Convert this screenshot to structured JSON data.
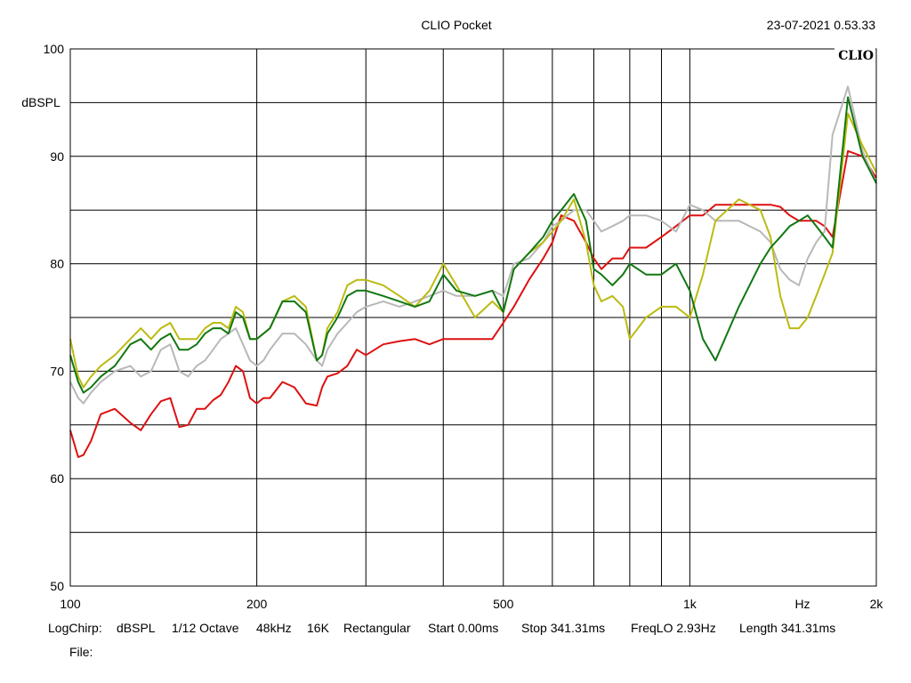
{
  "header": {
    "title": "CLIO Pocket",
    "timestamp": "23-07-2021 0.53.33"
  },
  "brand": "CLIO",
  "footer": {
    "settings": [
      "LogChirp:",
      "dBSPL",
      "1/12 Octave",
      "48kHz",
      "16K",
      "Rectangular",
      "Start 0.00ms",
      "Stop 341.31ms",
      "FreqLO 2.93Hz",
      "Length 341.31ms"
    ],
    "file_label": "File:"
  },
  "chart_data": {
    "type": "line",
    "title": "CLIO Pocket",
    "xscale": "log",
    "xlim": [
      100,
      2000
    ],
    "ylim": [
      50,
      100
    ],
    "ylabel": "dBSPL",
    "xunit": "Hz",
    "grid": true,
    "x_ticks": [
      {
        "value": 100,
        "label": "100"
      },
      {
        "value": 200,
        "label": "200"
      },
      {
        "value": 500,
        "label": "500"
      },
      {
        "value": 1000,
        "label": "1k"
      },
      {
        "value": 2000,
        "label": "2k"
      }
    ],
    "x_gridlines": [
      200,
      300,
      400,
      500,
      600,
      700,
      800,
      900,
      1000
    ],
    "y_ticks": [
      50,
      60,
      70,
      80,
      90,
      100
    ],
    "y_gridlines": [
      55,
      60,
      65,
      70,
      75,
      80,
      85,
      90,
      95
    ],
    "series": [
      {
        "color": "#dd1111",
        "x": [
          100,
          103,
          105,
          108,
          112,
          118,
          125,
          130,
          135,
          140,
          145,
          150,
          155,
          160,
          165,
          170,
          175,
          180,
          185,
          190,
          195,
          200,
          205,
          210,
          220,
          230,
          240,
          250,
          255,
          260,
          270,
          280,
          290,
          300,
          320,
          340,
          360,
          380,
          400,
          420,
          450,
          480,
          500,
          520,
          550,
          580,
          600,
          620,
          650,
          680,
          700,
          720,
          750,
          780,
          800,
          850,
          900,
          950,
          1000,
          1050,
          1100,
          1200,
          1300,
          1350,
          1400,
          1450,
          1500,
          1550,
          1600,
          1650,
          1700,
          1800,
          1900,
          2000
        ],
        "y": [
          64.5,
          62,
          62.2,
          63.5,
          66,
          66.5,
          65.2,
          64.5,
          66,
          67.2,
          67.5,
          64.8,
          65,
          66.5,
          66.5,
          67.3,
          67.8,
          69,
          70.5,
          70,
          67.5,
          67,
          67.5,
          67.5,
          69,
          68.5,
          67,
          66.8,
          68.5,
          69.5,
          69.8,
          70.5,
          72,
          71.5,
          72.5,
          72.8,
          73,
          72.5,
          73,
          73,
          73,
          73,
          74.5,
          76,
          78.5,
          80.5,
          82,
          84.5,
          84,
          82,
          80.5,
          79.5,
          80.5,
          80.5,
          81.5,
          81.5,
          82.5,
          83.5,
          84.5,
          84.5,
          85.5,
          85.5,
          85.5,
          85.5,
          85.3,
          84.5,
          84,
          84,
          84,
          83.5,
          82.5,
          90.5,
          90,
          88
        ]
      },
      {
        "color": "#b8b8b8",
        "x": [
          100,
          103,
          105,
          108,
          112,
          118,
          125,
          130,
          135,
          140,
          145,
          150,
          155,
          160,
          165,
          170,
          175,
          180,
          185,
          190,
          195,
          200,
          205,
          210,
          220,
          230,
          240,
          250,
          255,
          260,
          270,
          280,
          290,
          300,
          320,
          340,
          360,
          380,
          400,
          420,
          450,
          480,
          500,
          520,
          550,
          580,
          600,
          620,
          650,
          680,
          700,
          720,
          750,
          780,
          800,
          850,
          900,
          950,
          1000,
          1050,
          1100,
          1200,
          1300,
          1350,
          1400,
          1450,
          1500,
          1550,
          1600,
          1650,
          1700,
          1800,
          1900,
          2000
        ],
        "y": [
          69,
          67.5,
          67,
          68,
          69,
          70,
          70.5,
          69.5,
          70,
          72,
          72.5,
          70,
          69.5,
          70.5,
          71,
          72,
          73,
          73.5,
          74,
          72.5,
          71,
          70.5,
          71,
          72,
          73.5,
          73.5,
          72.5,
          71,
          70.5,
          72,
          73.5,
          74.5,
          75.5,
          76,
          76.5,
          76,
          76.5,
          77,
          77.5,
          77,
          77,
          77.5,
          77,
          80,
          80.5,
          82,
          83.5,
          84,
          85,
          85,
          84,
          83,
          83.5,
          84,
          84.5,
          84.5,
          84,
          83,
          85.5,
          85,
          84,
          84,
          83,
          82,
          79.5,
          78.5,
          78,
          80.5,
          82,
          83,
          92,
          96.5,
          90.5,
          87.5
        ]
      },
      {
        "color": "#bbbb11",
        "x": [
          100,
          103,
          105,
          108,
          112,
          118,
          125,
          130,
          135,
          140,
          145,
          150,
          155,
          160,
          165,
          170,
          175,
          180,
          185,
          190,
          195,
          200,
          205,
          210,
          220,
          230,
          240,
          250,
          255,
          260,
          270,
          280,
          290,
          300,
          320,
          340,
          360,
          380,
          400,
          420,
          450,
          480,
          500,
          520,
          550,
          580,
          600,
          620,
          650,
          680,
          700,
          720,
          750,
          780,
          800,
          850,
          900,
          950,
          1000,
          1050,
          1100,
          1200,
          1300,
          1350,
          1400,
          1450,
          1500,
          1550,
          1600,
          1650,
          1700,
          1800,
          1900,
          2000
        ],
        "y": [
          73,
          69.5,
          68.5,
          69.5,
          70.5,
          71.5,
          73,
          74,
          73,
          74,
          74.5,
          73,
          73,
          73,
          74,
          74.5,
          74.5,
          74,
          76,
          75.5,
          73,
          73,
          73.5,
          74,
          76.5,
          77,
          76,
          71,
          71.5,
          74,
          75.5,
          78,
          78.5,
          78.5,
          78,
          77,
          76,
          77.5,
          80,
          78,
          75,
          76.5,
          75.5,
          79.5,
          81,
          82,
          83,
          84,
          86,
          82,
          78,
          76.5,
          77,
          76,
          73,
          75,
          76,
          76,
          75,
          79,
          84,
          86,
          85,
          82.5,
          77,
          74,
          74,
          75,
          77,
          79,
          81,
          94,
          91,
          88.5
        ]
      },
      {
        "color": "#117711",
        "x": [
          100,
          103,
          105,
          108,
          112,
          118,
          125,
          130,
          135,
          140,
          145,
          150,
          155,
          160,
          165,
          170,
          175,
          180,
          185,
          190,
          195,
          200,
          205,
          210,
          220,
          230,
          240,
          250,
          255,
          260,
          270,
          280,
          290,
          300,
          320,
          340,
          360,
          380,
          400,
          420,
          450,
          480,
          500,
          520,
          550,
          580,
          600,
          620,
          650,
          680,
          700,
          720,
          750,
          780,
          800,
          850,
          900,
          950,
          1000,
          1050,
          1100,
          1200,
          1300,
          1350,
          1400,
          1450,
          1500,
          1550,
          1600,
          1650,
          1700,
          1800,
          1900,
          2000
        ],
        "y": [
          71.5,
          69,
          68,
          68.5,
          69.5,
          70.5,
          72.5,
          73,
          72,
          73,
          73.5,
          72,
          72,
          72.5,
          73.5,
          74,
          74,
          73.5,
          75.5,
          75,
          73,
          73,
          73.5,
          74,
          76.5,
          76.5,
          75.5,
          71,
          71.5,
          73.5,
          75,
          77,
          77.5,
          77.5,
          77,
          76.5,
          76,
          76.5,
          79,
          77.5,
          77,
          77.5,
          75.5,
          79.5,
          81,
          82.5,
          84,
          85,
          86.5,
          84,
          79.5,
          79,
          78,
          79,
          80,
          79,
          79,
          80,
          77.5,
          73,
          71,
          76,
          80,
          81.5,
          82.5,
          83.5,
          84,
          84.5,
          83.5,
          82.5,
          81.5,
          95.5,
          90,
          87.5
        ]
      }
    ]
  }
}
